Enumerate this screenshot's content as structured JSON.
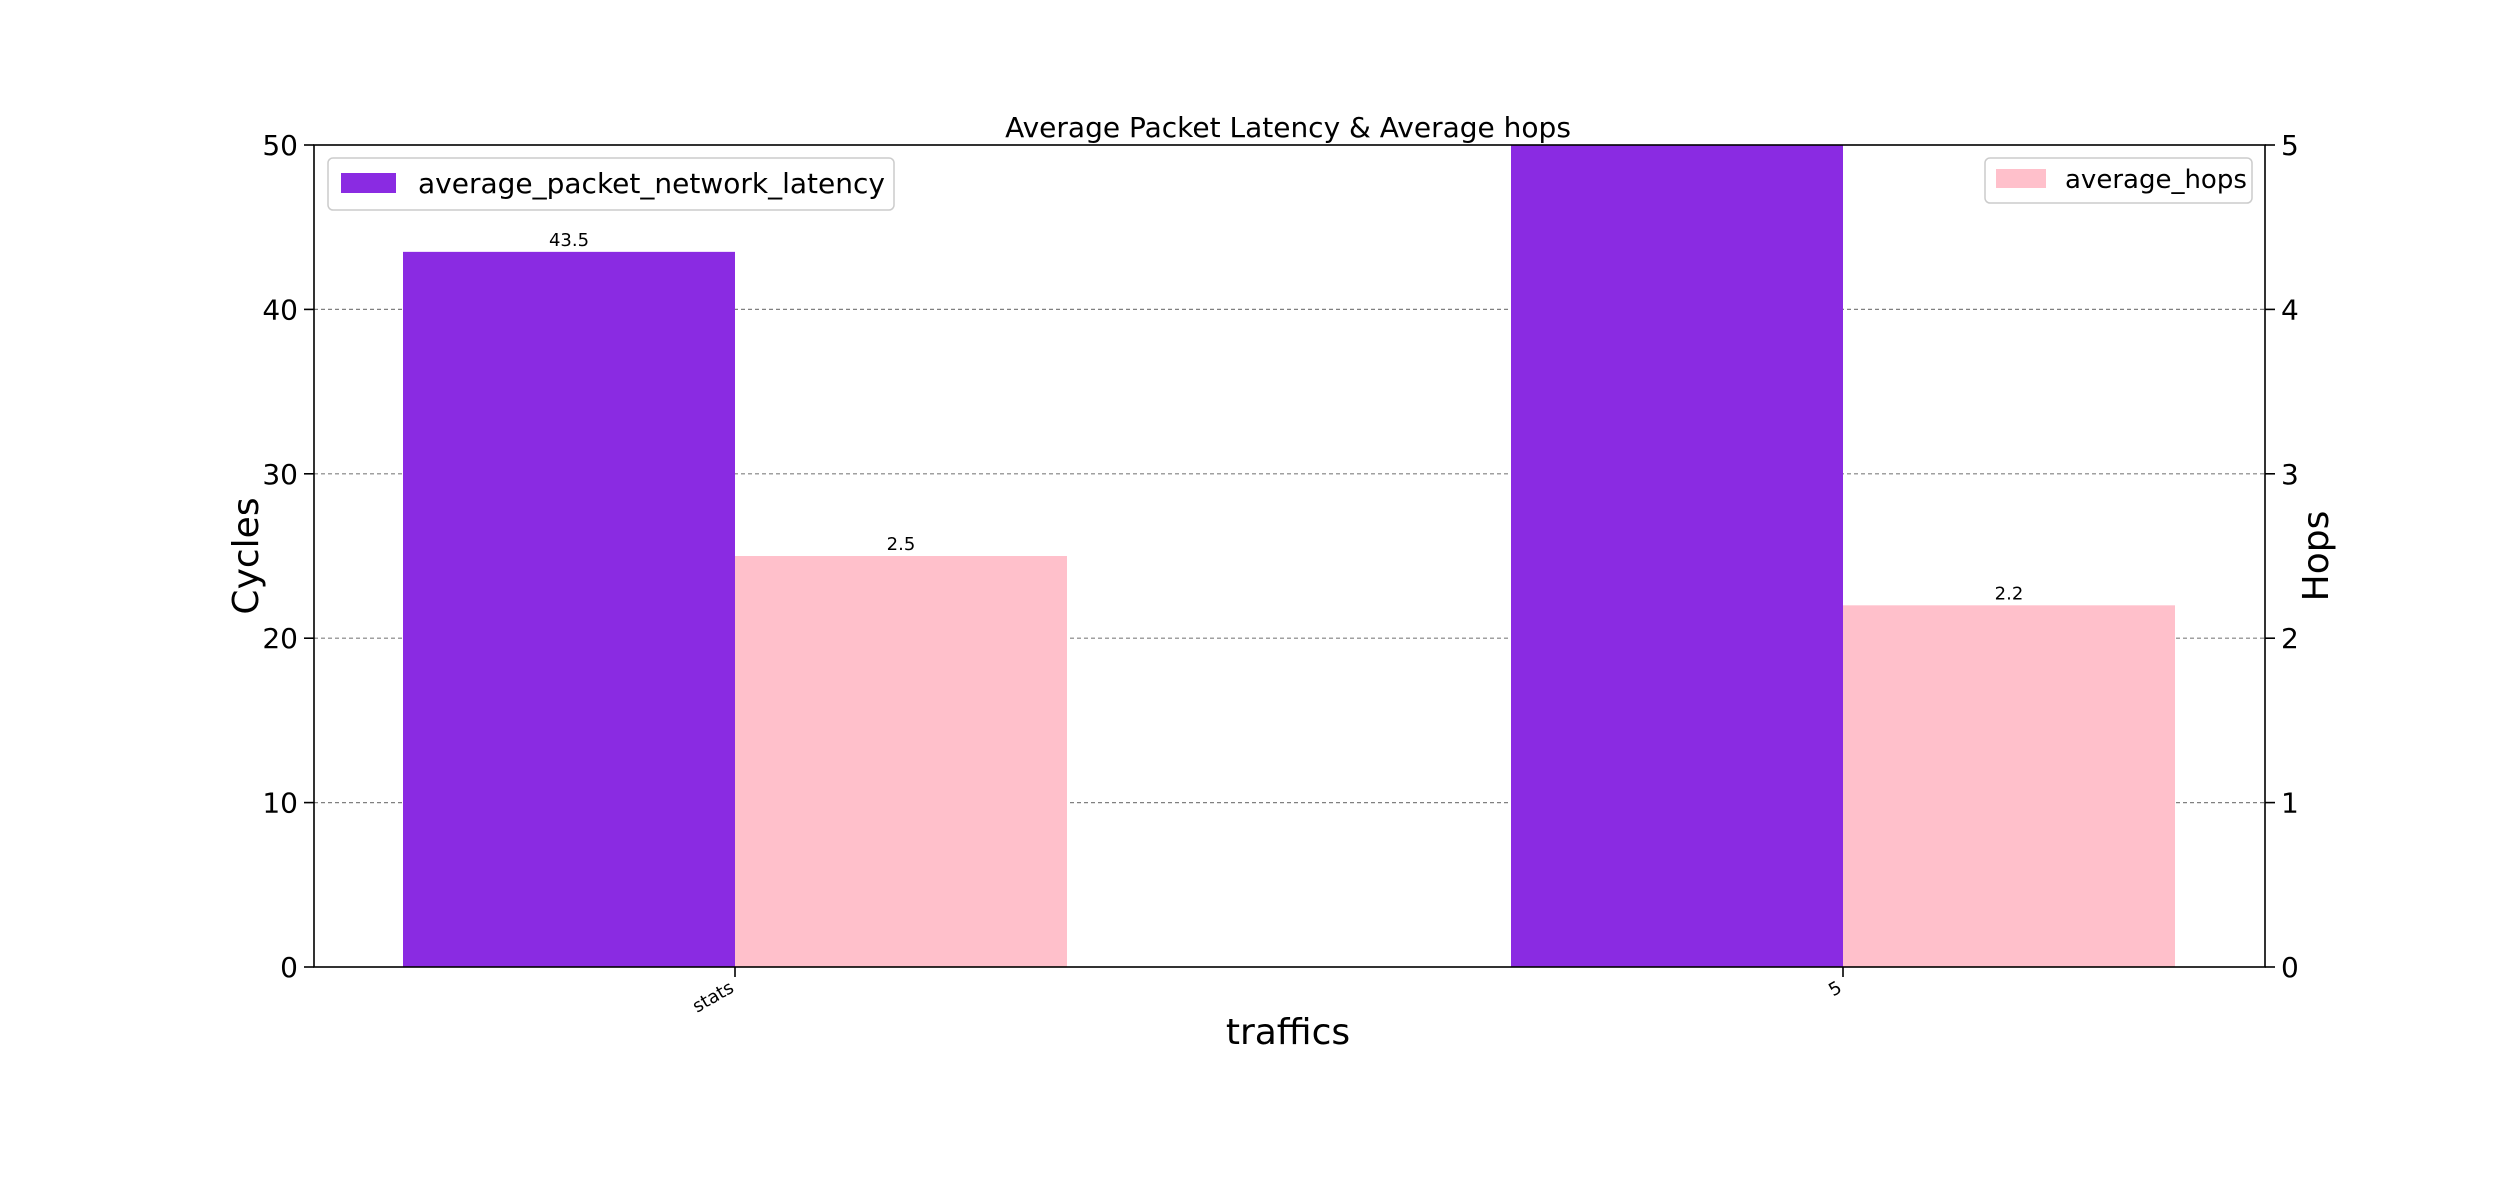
{
  "chart_data": {
    "type": "bar",
    "title": "Average Packet Latency & Average hops",
    "xlabel": "traffics",
    "ylabel": "Cycles",
    "y2label": "Hops",
    "categories": [
      "stats",
      "5"
    ],
    "ylim": [
      0,
      50
    ],
    "y2lim": [
      0,
      5
    ],
    "yticks": [
      0,
      10,
      20,
      30,
      40,
      50
    ],
    "y2ticks": [
      0,
      1,
      2,
      3,
      4,
      5
    ],
    "grid": "horizontal dashed",
    "series": [
      {
        "name": "average_packet_network_latency",
        "axis": "left",
        "color": "#8a2be2",
        "values": [
          43.5,
          50
        ],
        "labels": [
          "43.5",
          ""
        ],
        "legend_position": "upper-left"
      },
      {
        "name": "average_hops",
        "axis": "right",
        "color": "#ffc0cb",
        "values": [
          2.5,
          2.2
        ],
        "labels": [
          "2.5",
          "2.2"
        ],
        "legend_position": "upper-right"
      }
    ]
  }
}
